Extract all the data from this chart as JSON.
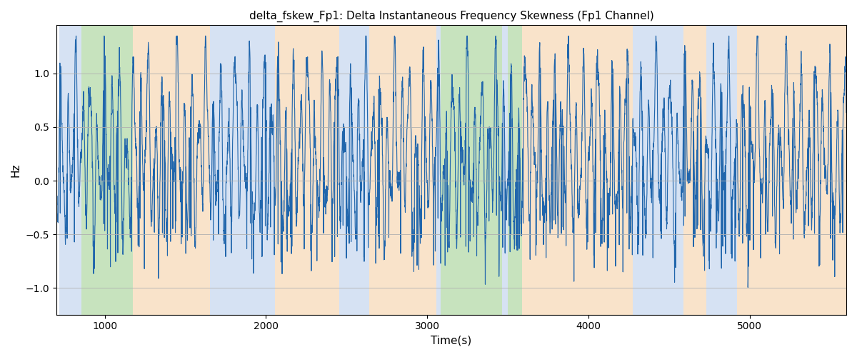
{
  "title": "delta_fskew_Fp1: Delta Instantaneous Frequency Skewness (Fp1 Channel)",
  "xlabel": "Time(s)",
  "ylabel": "Hz",
  "xlim": [
    700,
    5600
  ],
  "ylim": [
    -1.25,
    1.45
  ],
  "yticks": [
    -1.0,
    -0.5,
    0.0,
    0.5,
    1.0
  ],
  "xticks": [
    1000,
    2000,
    3000,
    4000,
    5000
  ],
  "line_color": "#2166ac",
  "line_width": 0.8,
  "bg_color": "white",
  "grid_color": "#b0b0b0",
  "regions": [
    {
      "xmin": 720,
      "xmax": 855,
      "color": "#aec6e8",
      "alpha": 0.5
    },
    {
      "xmin": 855,
      "xmax": 1175,
      "color": "#90c97f",
      "alpha": 0.5
    },
    {
      "xmin": 1175,
      "xmax": 1655,
      "color": "#f5c897",
      "alpha": 0.5
    },
    {
      "xmin": 1655,
      "xmax": 2055,
      "color": "#aec6e8",
      "alpha": 0.5
    },
    {
      "xmin": 2055,
      "xmax": 2455,
      "color": "#f5c897",
      "alpha": 0.5
    },
    {
      "xmin": 2455,
      "xmax": 2640,
      "color": "#aec6e8",
      "alpha": 0.5
    },
    {
      "xmin": 2640,
      "xmax": 3055,
      "color": "#f5c897",
      "alpha": 0.5
    },
    {
      "xmin": 3055,
      "xmax": 3085,
      "color": "#aec6e8",
      "alpha": 0.5
    },
    {
      "xmin": 3085,
      "xmax": 3465,
      "color": "#90c97f",
      "alpha": 0.5
    },
    {
      "xmin": 3465,
      "xmax": 3500,
      "color": "#aec6e8",
      "alpha": 0.5
    },
    {
      "xmin": 3500,
      "xmax": 3590,
      "color": "#90c97f",
      "alpha": 0.5
    },
    {
      "xmin": 3590,
      "xmax": 4275,
      "color": "#f5c897",
      "alpha": 0.5
    },
    {
      "xmin": 4275,
      "xmax": 4590,
      "color": "#aec6e8",
      "alpha": 0.5
    },
    {
      "xmin": 4590,
      "xmax": 4730,
      "color": "#f5c897",
      "alpha": 0.5
    },
    {
      "xmin": 4730,
      "xmax": 4920,
      "color": "#aec6e8",
      "alpha": 0.5
    },
    {
      "xmin": 4920,
      "xmax": 5600,
      "color": "#f5c897",
      "alpha": 0.5
    }
  ],
  "seed": 12345,
  "n_points": 4900
}
